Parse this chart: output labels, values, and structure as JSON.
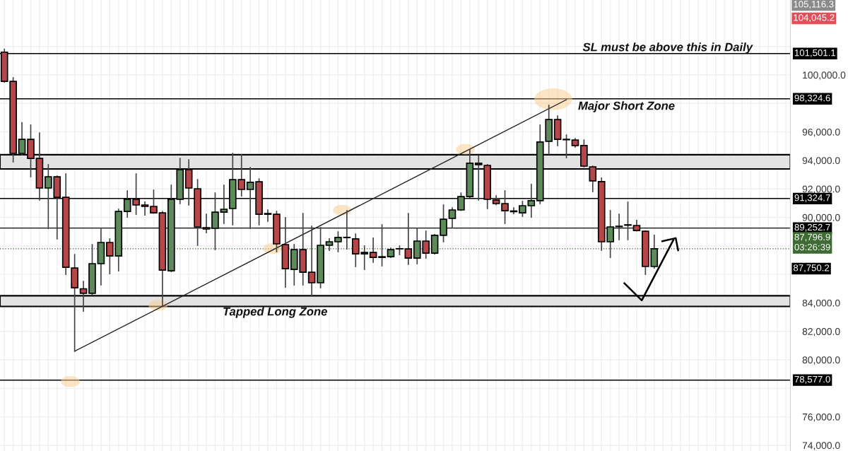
{
  "chart_data": {
    "type": "candlestick",
    "categories": [
      null,
      null,
      null,
      null,
      null,
      null,
      null,
      null,
      null,
      null,
      null,
      null,
      null,
      null,
      null,
      null,
      null,
      null,
      null,
      null,
      null,
      null,
      null,
      null,
      null,
      null,
      null,
      null,
      null,
      null,
      null,
      null,
      null,
      null,
      null,
      null,
      null,
      null,
      null,
      null,
      null,
      null,
      null,
      null,
      null,
      null,
      null,
      null,
      null,
      null,
      null,
      null,
      null,
      null,
      null,
      null,
      null,
      null,
      null,
      null,
      null,
      null,
      null,
      null,
      null,
      null,
      null,
      null,
      null,
      null,
      null,
      null,
      null,
      null,
      null,
      null,
      null,
      null,
      null,
      null,
      null,
      null,
      null,
      null,
      null,
      null,
      null,
      null,
      null,
      null
    ],
    "ohlc": [
      [
        101600,
        101800,
        99500,
        99550
      ],
      [
        99550,
        99800,
        93900,
        94490
      ],
      [
        94490,
        96650,
        94400,
        95480
      ],
      [
        95480,
        96480,
        92850,
        94140
      ],
      [
        94140,
        95930,
        91220,
        92060
      ],
      [
        92060,
        93700,
        89230,
        92850
      ],
      [
        92850,
        92900,
        88490,
        91410
      ],
      [
        91410,
        93050,
        86000,
        86500
      ],
      [
        86450,
        87390,
        80600,
        85060
      ],
      [
        84990,
        85510,
        83420,
        84670
      ],
      [
        84670,
        88090,
        84600,
        86750
      ],
      [
        86750,
        89180,
        85260,
        88240
      ],
      [
        88240,
        88490,
        86050,
        87290
      ],
      [
        87290,
        90570,
        86250,
        90420
      ],
      [
        90420,
        91860,
        90020,
        91270
      ],
      [
        91270,
        93050,
        90220,
        90870
      ],
      [
        90870,
        91070,
        90170,
        90770
      ],
      [
        90770,
        91910,
        90300,
        90320
      ],
      [
        90320,
        90400,
        83800,
        86300
      ],
      [
        86250,
        92260,
        86200,
        91270
      ],
      [
        91270,
        94140,
        90970,
        93350
      ],
      [
        93350,
        94040,
        90870,
        92060
      ],
      [
        92010,
        92650,
        88040,
        89330
      ],
      [
        89280,
        90220,
        88930,
        89180
      ],
      [
        89230,
        91710,
        87740,
        90370
      ],
      [
        90370,
        92260,
        89580,
        90570
      ],
      [
        90620,
        94490,
        89480,
        92650
      ],
      [
        92650,
        94390,
        91510,
        91960
      ],
      [
        91960,
        93500,
        89230,
        92460
      ],
      [
        92500,
        92700,
        89480,
        90220
      ],
      [
        90270,
        90520,
        89730,
        90220
      ],
      [
        90220,
        90420,
        87590,
        88140
      ],
      [
        88090,
        89980,
        85110,
        86400
      ],
      [
        86350,
        88090,
        85260,
        87740
      ],
      [
        87740,
        90270,
        85260,
        86150
      ],
      [
        86150,
        89380,
        84470,
        85410
      ],
      [
        85410,
        89280,
        85060,
        88040
      ],
      [
        88040,
        88490,
        87690,
        88290
      ],
      [
        88290,
        88980,
        87590,
        88590
      ],
      [
        88600,
        90470,
        87790,
        88580
      ],
      [
        88490,
        88830,
        86550,
        87440
      ],
      [
        87440,
        87990,
        86350,
        87540
      ],
      [
        87540,
        88540,
        86850,
        87190
      ],
      [
        87240,
        89480,
        86600,
        87190
      ],
      [
        87240,
        87840,
        87190,
        87740
      ],
      [
        87790,
        87990,
        87390,
        87800
      ],
      [
        87790,
        90270,
        86700,
        87140
      ],
      [
        87140,
        89230,
        86750,
        88340
      ],
      [
        88340,
        89030,
        87140,
        87490
      ],
      [
        87490,
        88790,
        87440,
        88740
      ],
      [
        88740,
        90870,
        88290,
        89870
      ],
      [
        89930,
        90670,
        89280,
        90520
      ],
      [
        90520,
        91710,
        90500,
        91460
      ],
      [
        91460,
        94740,
        91400,
        93800
      ],
      [
        93800,
        94340,
        91220,
        93700
      ],
      [
        93650,
        93700,
        90620,
        91270
      ],
      [
        91220,
        91510,
        90900,
        90970
      ],
      [
        90970,
        91860,
        89580,
        90470
      ],
      [
        90450,
        90670,
        90270,
        90400
      ],
      [
        90320,
        91120,
        90070,
        90820
      ],
      [
        90820,
        92310,
        90020,
        91170
      ],
      [
        91170,
        96480,
        90970,
        95290
      ],
      [
        95340,
        97870,
        94440,
        96870
      ],
      [
        96870,
        97120,
        95040,
        95480
      ],
      [
        95480,
        95780,
        94190,
        95450
      ],
      [
        95430,
        95530,
        94940,
        95040
      ],
      [
        95040,
        95430,
        93550,
        93600
      ],
      [
        93550,
        93600,
        91810,
        92560
      ],
      [
        92510,
        92760,
        87690,
        88290
      ],
      [
        88290,
        90470,
        87190,
        89330
      ],
      [
        89380,
        90220,
        88440,
        89350
      ],
      [
        89450,
        91070,
        88440,
        89480
      ],
      [
        89430,
        89780,
        89050,
        89080
      ],
      [
        89030,
        89030,
        86000,
        86550
      ],
      [
        86550,
        88740,
        86450,
        87797
      ],
      null,
      null,
      null,
      null,
      null,
      null,
      null,
      null,
      null,
      null,
      null,
      null,
      null,
      null,
      null
    ],
    "colors": [
      "#b5474b",
      "#b5474b",
      "#5d8a5a",
      "#b5474b",
      "#b5474b",
      "#5d8a5a",
      "#b5474b",
      "#b5474b",
      "#b5474b",
      "#b5474b",
      "#5d8a5a",
      "#5d8a5a",
      "#b5474b",
      "#5d8a5a",
      "#5d8a5a",
      "#b5474b",
      "#b5474b",
      "#b5474b",
      "#b5474b",
      "#5d8a5a",
      "#5d8a5a",
      "#b5474b",
      "#b5474b",
      "#b5474b",
      "#5d8a5a",
      "#5d8a5a",
      "#5d8a5a",
      "#b5474b",
      "#5d8a5a",
      "#b5474b",
      "#b5474b",
      "#b5474b",
      "#b5474b",
      "#5d8a5a",
      "#b5474b",
      "#b5474b",
      "#5d8a5a",
      "#5d8a5a",
      "#5d8a5a",
      "#b5474b",
      "#b5474b",
      "#5d8a5a",
      "#b5474b",
      "#b5474b",
      "#5d8a5a",
      "#5d8a5a",
      "#b5474b",
      "#5d8a5a",
      "#b5474b",
      "#5d8a5a",
      "#5d8a5a",
      "#5d8a5a",
      "#5d8a5a",
      "#5d8a5a",
      "#b5474b",
      "#b5474b",
      "#b5474b",
      "#b5474b",
      "#b5474b",
      "#5d8a5a",
      "#5d8a5a",
      "#5d8a5a",
      "#5d8a5a",
      "#b5474b",
      "#b5474b",
      "#b5474b",
      "#b5474b",
      "#b5474b",
      "#b5474b",
      "#5d8a5a",
      "#b5474b",
      "#5d8a5a",
      "#b5474b",
      "#b5474b",
      "#5d8a5a",
      null,
      null,
      null,
      null,
      null,
      null,
      null,
      null,
      null,
      null,
      null,
      null,
      null,
      null,
      null
    ],
    "series": [
      {
        "type": "line",
        "color": "#222222",
        "values": [
          null,
          null,
          null,
          null,
          null,
          null,
          null,
          null,
          80600,
          null,
          null,
          null,
          null,
          null,
          null,
          null,
          null,
          null,
          null,
          null,
          null,
          null,
          null,
          null,
          null,
          null,
          null,
          null,
          null,
          null,
          null,
          null,
          null,
          null,
          null,
          null,
          null,
          null,
          null,
          null,
          null,
          null,
          null,
          null,
          null,
          null,
          null,
          null,
          null,
          null,
          null,
          null,
          null,
          null,
          null,
          null,
          null,
          null,
          null,
          null,
          null,
          null,
          null,
          null,
          98260,
          null,
          null,
          null,
          null,
          null,
          null,
          null,
          null,
          null,
          null,
          null,
          null,
          null,
          null,
          null,
          null,
          null,
          null,
          null,
          null,
          null,
          null,
          null,
          null,
          null
        ]
      }
    ],
    "ylim": [
      73600,
      105260
    ],
    "yticks": [
      {
        "value": 74000,
        "label": "74,000.0"
      },
      {
        "value": 76000,
        "label": "76,000.0"
      },
      {
        "value": 78000,
        "label": null
      },
      {
        "value": 80000,
        "label": "80,000.0"
      },
      {
        "value": 82000,
        "label": "82,000.0"
      },
      {
        "value": 84000,
        "label": "84,000.0"
      },
      {
        "value": 86000,
        "label": null
      },
      {
        "value": 88000,
        "label": null
      },
      {
        "value": 90000,
        "label": "90,000.0"
      },
      {
        "value": 92000,
        "label": "92,000.0"
      },
      {
        "value": 94000,
        "label": "94,000.0"
      },
      {
        "value": 96000,
        "label": "96,000.0"
      },
      {
        "value": 98000,
        "label": null
      },
      {
        "value": 100000,
        "label": "100,000.0"
      },
      {
        "value": 102000,
        "label": null
      }
    ],
    "ref_lines": [
      {
        "axis": "y",
        "value": 101501.1,
        "label": "101,501.1",
        "color": "#000000",
        "line_style": "solid"
      },
      {
        "axis": "y",
        "value": 98324.6,
        "label": "98,324.6",
        "color": "#000000",
        "line_style": "solid"
      },
      {
        "axis": "y",
        "value": 91324.7,
        "label": "91,324.7",
        "color": "#000000",
        "line_style": "solid"
      },
      {
        "axis": "y",
        "value": 89252.7,
        "label": "89,252.7",
        "color": "#000000",
        "line_style": "solid"
      },
      {
        "axis": "y",
        "value": 87796.9,
        "label": "87,796.9\n03:26:39",
        "color": "#3f6b35",
        "line_style": "dotted"
      },
      {
        "axis": "y",
        "value": 78577.0,
        "label": "78,577.0",
        "color": "#000000",
        "line_style": "solid"
      }
    ],
    "bands": [
      {
        "axis": "y",
        "from": 93400,
        "to": 94400,
        "color": "#e3e3e3"
      },
      {
        "axis": "y",
        "from": 83750,
        "to": 84500,
        "color": "#e3e3e3"
      }
    ],
    "annotations": [
      "SL must be above this in Daily",
      "Major Short Zone",
      "Tapped Long Zone",
      "105,116.3",
      "104,045.2",
      "87,750.2"
    ],
    "grid": true
  }
}
